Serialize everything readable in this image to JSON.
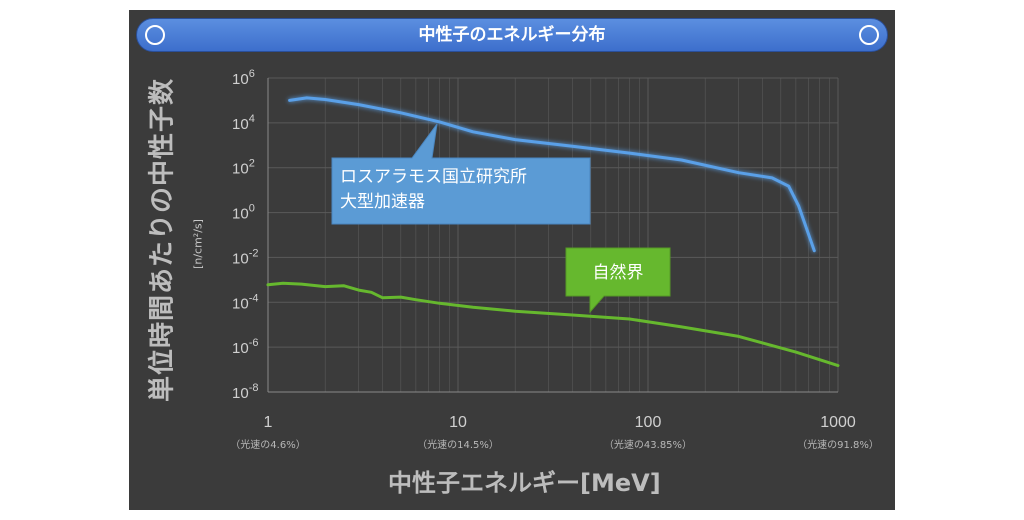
{
  "title": "中性子のエネルギー分布",
  "y_axis_label": "単位時間あたりの中性子数",
  "y_axis_unit": "[n/cm²/s]",
  "x_axis_label": "中性子エネルギー[MeV]",
  "x_ticks": [
    {
      "value": 1,
      "label": "1",
      "sub": "（光速の4.6%）"
    },
    {
      "value": 10,
      "label": "10",
      "sub": "（光速の14.5%）"
    },
    {
      "value": 100,
      "label": "100",
      "sub": "（光速の43.85%）"
    },
    {
      "value": 1000,
      "label": "1000",
      "sub": "（光速の91.8%）"
    }
  ],
  "y_ticks": [
    {
      "exp": 6,
      "label": "10",
      "sup": "6"
    },
    {
      "exp": 4,
      "label": "10",
      "sup": "4"
    },
    {
      "exp": 2,
      "label": "10",
      "sup": "2"
    },
    {
      "exp": 0,
      "label": "10",
      "sup": "0"
    },
    {
      "exp": -2,
      "label": "10",
      "sup": "-2"
    },
    {
      "exp": -4,
      "label": "10",
      "sup": "-4"
    },
    {
      "exp": -6,
      "label": "10",
      "sup": "-6"
    },
    {
      "exp": -8,
      "label": "10",
      "sup": "-8"
    }
  ],
  "colors": {
    "panel": "#3b3b3b",
    "blue_series": "#5aa0e8",
    "green_series": "#66b82e",
    "grid": "#5a5a5a"
  },
  "chart_data": {
    "type": "line",
    "x_scale": "log",
    "y_scale": "log",
    "xlim": [
      1,
      1000
    ],
    "ylim": [
      1e-08,
      1000000.0
    ],
    "grid": true,
    "series": [
      {
        "name": "ロスアラモス国立研究所 大型加速器",
        "color": "#5aa0e8",
        "x": [
          1.3,
          1.6,
          2,
          3,
          5,
          8,
          12,
          20,
          40,
          80,
          150,
          300,
          450,
          550,
          620,
          750
        ],
        "y": [
          100000.0,
          130000.0,
          110000.0,
          65000.0,
          28000.0,
          11000.0,
          4000.0,
          1800.0,
          900.0,
          450.0,
          220.0,
          60.0,
          35.0,
          15.0,
          2.0,
          0.02
        ]
      },
      {
        "name": "自然界",
        "color": "#66b82e",
        "x": [
          1,
          1.2,
          1.5,
          2,
          2.5,
          3,
          3.5,
          4,
          5,
          6,
          8,
          12,
          20,
          40,
          80,
          150,
          300,
          600,
          1000
        ],
        "y": [
          0.0006,
          0.0007,
          0.00065,
          0.0005,
          0.00055,
          0.00035,
          0.00028,
          0.00016,
          0.00017,
          0.00013,
          9e-05,
          6e-05,
          4e-05,
          2.7e-05,
          1.8e-05,
          8e-06,
          3e-06,
          6e-07,
          1.5e-07
        ]
      }
    ],
    "annotations": [
      {
        "series": 0,
        "lines": [
          "ロスアラモス国立研究所",
          "大型加速器"
        ]
      },
      {
        "series": 1,
        "lines": [
          "自然界"
        ]
      }
    ]
  }
}
